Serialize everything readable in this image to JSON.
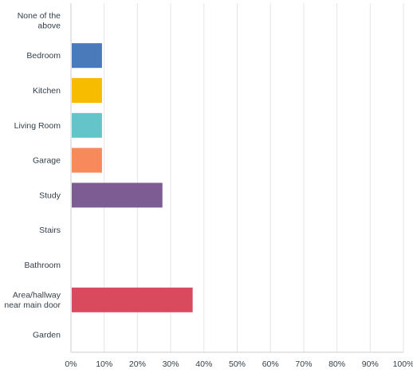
{
  "chart_data": {
    "type": "bar",
    "orientation": "horizontal",
    "title": "",
    "xlabel": "",
    "ylabel": "",
    "categories": [
      "None of the above",
      "Bedroom",
      "Kitchen",
      "Living Room",
      "Garage",
      "Study",
      "Stairs",
      "Bathroom",
      "Area/hallway near main door",
      "Garden"
    ],
    "values": [
      0,
      9.09,
      9.09,
      9.09,
      9.09,
      27.27,
      0,
      0,
      36.36,
      0
    ],
    "colors": [
      "#4a7ab9",
      "#4a7ab9",
      "#f7bb00",
      "#63c5c9",
      "#f7895a",
      "#7c5c93",
      "#f6a6a6",
      "#9ad0a8",
      "#d94a5e",
      "#9ac4e0"
    ],
    "xlim": [
      0,
      100
    ],
    "xticks": [
      "0%",
      "10%",
      "20%",
      "30%",
      "40%",
      "50%",
      "60%",
      "70%",
      "80%",
      "90%",
      "100%"
    ],
    "grid": "vertical",
    "legend": "none"
  }
}
